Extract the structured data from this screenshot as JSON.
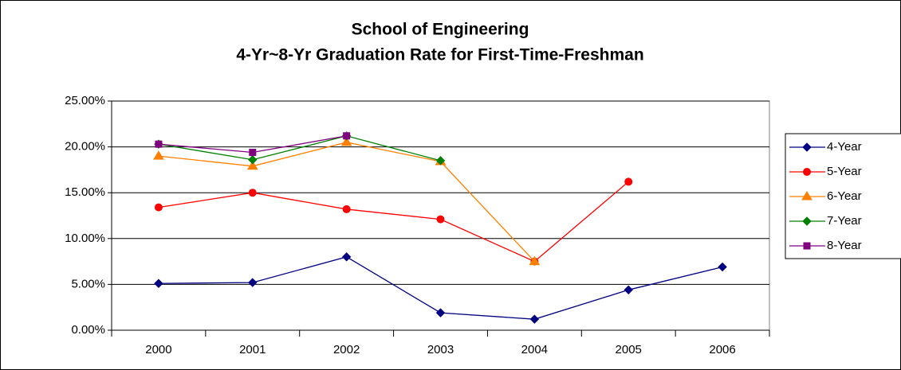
{
  "chart_data": {
    "type": "line",
    "title": "School of Engineering",
    "subtitle": "4-Yr~8-Yr Graduation Rate for First-Time-Freshman",
    "categories": [
      "2000",
      "2001",
      "2002",
      "2003",
      "2004",
      "2005",
      "2006"
    ],
    "series": [
      {
        "name": "4-Year",
        "color": "#000080",
        "marker": "diamond",
        "values": [
          5.1,
          5.2,
          8.0,
          1.9,
          1.2,
          4.4,
          6.9
        ]
      },
      {
        "name": "5-Year",
        "color": "#ff0000",
        "marker": "circle",
        "values": [
          13.4,
          15.0,
          13.2,
          12.1,
          7.5,
          16.2,
          null
        ]
      },
      {
        "name": "6-Year",
        "color": "#ff8000",
        "marker": "triangle",
        "values": [
          19.0,
          17.9,
          20.5,
          18.4,
          7.5,
          null,
          null
        ]
      },
      {
        "name": "7-Year",
        "color": "#008000",
        "marker": "diamond",
        "values": [
          20.3,
          18.6,
          21.2,
          18.5,
          null,
          null,
          null
        ]
      },
      {
        "name": "8-Year",
        "color": "#800080",
        "marker": "square",
        "values": [
          20.3,
          19.4,
          21.2,
          null,
          null,
          null,
          null
        ]
      }
    ],
    "ylim": [
      0,
      25
    ],
    "yticks": [
      {
        "value": 0,
        "label": "0.00%"
      },
      {
        "value": 5,
        "label": "5.00%"
      },
      {
        "value": 10,
        "label": "10.00%"
      },
      {
        "value": 15,
        "label": "15.00%"
      },
      {
        "value": 20,
        "label": "20.00%"
      },
      {
        "value": 25,
        "label": "25.00%"
      }
    ],
    "grid": true,
    "legend": "right"
  }
}
